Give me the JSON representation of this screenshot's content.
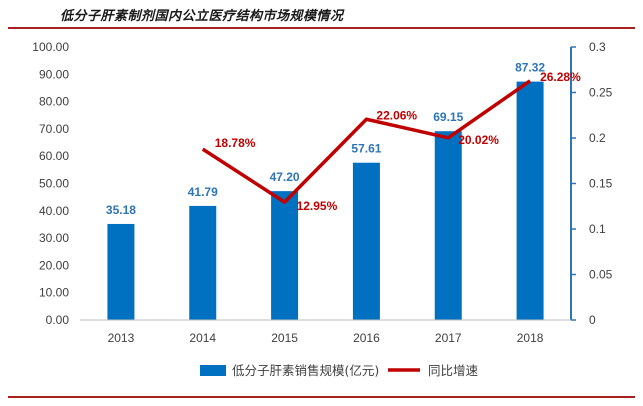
{
  "header": {
    "title": "低分子肝素制剂国内公立医疗结构市场规模情况"
  },
  "chart_data": {
    "type": "bar",
    "title": "低分子肝素制剂国内公立医疗结构市场规模情况",
    "categories": [
      "2013",
      "2014",
      "2015",
      "2016",
      "2017",
      "2018"
    ],
    "series": [
      {
        "name": "低分子肝素销售规模(亿元)",
        "type": "bar",
        "axis": "left",
        "color": "#0070c0",
        "values": [
          35.18,
          41.79,
          47.2,
          57.61,
          69.15,
          87.32
        ],
        "labels": [
          "35.18",
          "41.79",
          "47.20",
          "57.61",
          "69.15",
          "87.32"
        ]
      },
      {
        "name": "同比增速",
        "type": "line",
        "axis": "right",
        "color": "#c00000",
        "values": [
          null,
          0.1878,
          0.1295,
          0.2206,
          0.2002,
          0.2628
        ],
        "labels": [
          "",
          "18.78%",
          "12.95%",
          "22.06%",
          "20.02%",
          "26.28%"
        ]
      }
    ],
    "y_left": {
      "range": [
        0,
        100
      ],
      "ticks": [
        "0.00",
        "10.00",
        "20.00",
        "30.00",
        "40.00",
        "50.00",
        "60.00",
        "70.00",
        "80.00",
        "90.00",
        "100.00"
      ]
    },
    "y_right": {
      "range": [
        0,
        0.3
      ],
      "ticks": [
        "0",
        "0.05",
        "0.1",
        "0.15",
        "0.2",
        "0.25",
        "0.3"
      ]
    },
    "grid": false,
    "legend_position": "bottom"
  }
}
